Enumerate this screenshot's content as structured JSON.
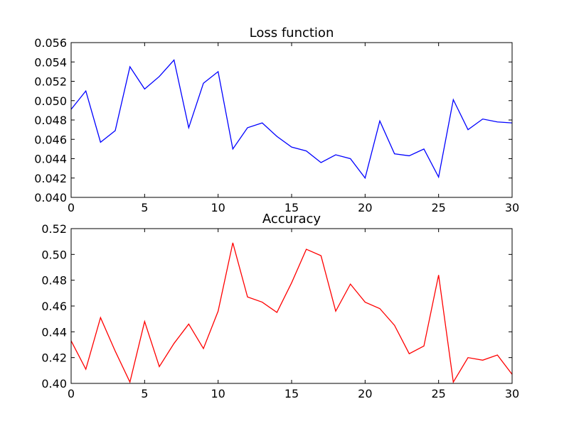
{
  "chart_data": [
    {
      "type": "line",
      "title": "Loss function",
      "xlabel": "",
      "ylabel": "",
      "xlim": [
        0,
        30
      ],
      "ylim": [
        0.04,
        0.056
      ],
      "xticks": [
        "0",
        "5",
        "10",
        "15",
        "20",
        "25",
        "30"
      ],
      "yticks": [
        "0.040",
        "0.042",
        "0.044",
        "0.046",
        "0.048",
        "0.050",
        "0.052",
        "0.054",
        "0.056"
      ],
      "grid": false,
      "color": "#0000ff",
      "x": [
        0,
        1,
        2,
        3,
        4,
        5,
        6,
        7,
        8,
        9,
        10,
        11,
        12,
        13,
        14,
        15,
        16,
        17,
        18,
        19,
        20,
        21,
        22,
        23,
        24,
        25,
        26,
        27,
        28,
        29,
        30
      ],
      "y": [
        0.0491,
        0.051,
        0.0457,
        0.0469,
        0.0535,
        0.0512,
        0.0525,
        0.0542,
        0.0472,
        0.0518,
        0.053,
        0.045,
        0.0472,
        0.0477,
        0.0463,
        0.0452,
        0.0448,
        0.0436,
        0.0444,
        0.044,
        0.042,
        0.0479,
        0.0445,
        0.0443,
        0.045,
        0.0421,
        0.0501,
        0.047,
        0.0481,
        0.0478,
        0.0477
      ]
    },
    {
      "type": "line",
      "title": "Accuracy",
      "xlabel": "",
      "ylabel": "",
      "xlim": [
        0,
        30
      ],
      "ylim": [
        0.4,
        0.52
      ],
      "xticks": [
        "0",
        "5",
        "10",
        "15",
        "20",
        "25",
        "30"
      ],
      "yticks": [
        "0.40",
        "0.42",
        "0.44",
        "0.46",
        "0.48",
        "0.50",
        "0.52"
      ],
      "grid": false,
      "color": "#ff0000",
      "x": [
        0,
        1,
        2,
        3,
        4,
        5,
        6,
        7,
        8,
        9,
        10,
        11,
        12,
        13,
        14,
        15,
        16,
        17,
        18,
        19,
        20,
        21,
        22,
        23,
        24,
        25,
        26,
        27,
        28,
        29,
        30
      ],
      "y": [
        0.433,
        0.411,
        0.451,
        0.425,
        0.401,
        0.448,
        0.413,
        0.431,
        0.446,
        0.427,
        0.456,
        0.509,
        0.467,
        0.463,
        0.455,
        0.478,
        0.504,
        0.499,
        0.456,
        0.477,
        0.463,
        0.458,
        0.445,
        0.423,
        0.429,
        0.484,
        0.401,
        0.42,
        0.418,
        0.422,
        0.407
      ]
    }
  ]
}
